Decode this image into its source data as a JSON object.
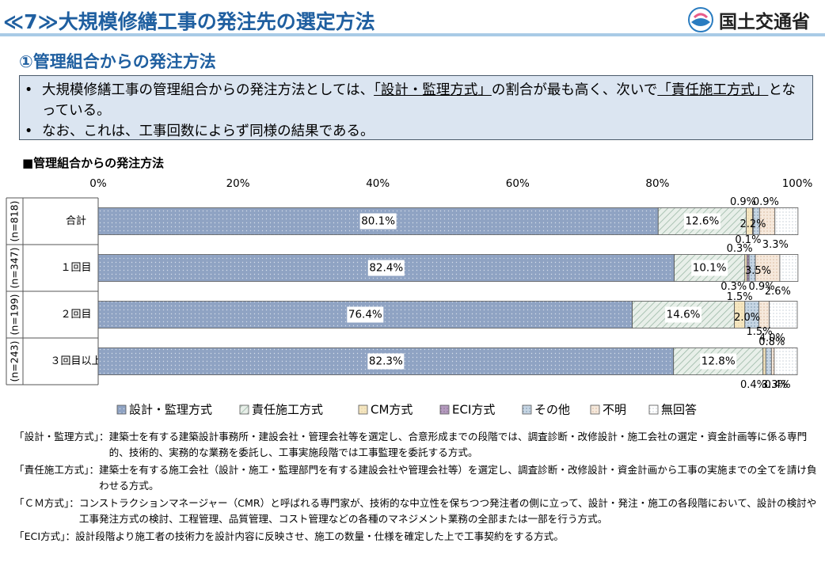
{
  "header": {
    "title": "≪7≫大規模修繕工事の発注先の選定方法",
    "logo_text": "国土交通省",
    "logo_icon": "mlit-logo-icon"
  },
  "subtitle": "①管理組合からの発注方法",
  "summary": {
    "bullet": "•",
    "line1_pre": "大規模修繕工事の管理組合からの発注方法としては、",
    "line1_u1": "「設計・監理方式」",
    "line1_mid": "の割合が最も高く、次いで",
    "line1_u2": "「責任施工方式」",
    "line1_post": "となっている。",
    "line2": "なお、これは、工事回数によらず同様の結果である。"
  },
  "chart_title": "■管理組合からの発注方法",
  "chart_data": {
    "type": "bar",
    "orientation": "horizontal",
    "stacked": true,
    "xlim": [
      0,
      100
    ],
    "x_ticks": [
      "0%",
      "20%",
      "40%",
      "60%",
      "80%",
      "100%"
    ],
    "categories": [
      "合計",
      "１回目",
      "２回目",
      "３回目以上"
    ],
    "n_labels": [
      "(n=818)",
      "(n=347)",
      "(n=199)",
      "(n=243)"
    ],
    "legend_position": "bottom",
    "series": [
      {
        "name": "設計・監理方式",
        "color": "#8fa3c3",
        "values": [
          80.1,
          82.4,
          76.4,
          82.3
        ],
        "labels": [
          "80.1%",
          "82.4%",
          "76.4%",
          "82.3%"
        ]
      },
      {
        "name": "責任施工方式",
        "color": "#d2e3d6",
        "values": [
          12.6,
          10.1,
          14.6,
          12.8
        ],
        "labels": [
          "12.6%",
          "10.1%",
          "14.6%",
          "12.8%"
        ]
      },
      {
        "name": "CM方式",
        "color": "#f5e6c0",
        "values": [
          0.9,
          0.3,
          1.5,
          0.4
        ],
        "labels": [
          "0.9%",
          "0.3%",
          "1.5%",
          "0.4%"
        ]
      },
      {
        "name": "ECI方式",
        "color": "#c9b8cf",
        "values": [
          0.1,
          0.3,
          0.0,
          0.0
        ],
        "labels": [
          "0.1%",
          "0.3%",
          "",
          ""
        ]
      },
      {
        "name": "その他",
        "color": "#b4c8da",
        "values": [
          0.9,
          0.9,
          2.0,
          0.8
        ],
        "labels": [
          "0.9%",
          "0.9%",
          "2.0%",
          "0.8%"
        ]
      },
      {
        "name": "不明",
        "color": "#f3e4d0",
        "values": [
          2.2,
          3.5,
          1.5,
          0.4
        ],
        "labels": [
          "2.2%",
          "3.5%",
          "1.5%",
          "0.4%"
        ]
      },
      {
        "name": "無回答",
        "color": "#ffffff",
        "values": [
          3.3,
          2.6,
          4.0,
          3.3
        ],
        "labels": [
          "3.3%",
          "2.6%",
          "4.0%",
          "3.3%"
        ]
      }
    ]
  },
  "notes": [
    {
      "term": "「設計・監理方式」：",
      "body": "建築士を有する建築設計事務所・建設会社・管理会社等を選定し、合意形成までの段階では、調査診断・改修設計・施工会社の選定・資金計画等に係る専門的、技術的、実務的な業務を委託し、工事実施段階では工事監理を委託する方式。"
    },
    {
      "term": "「責任施工方式」：",
      "body": "建築士を有する施工会社（設計・施工・監理部門を有する建設会社や管理会社等）を選定し、調査診断・改修設計・資金計画から工事の実施までの全てを請け負わせる方式。"
    },
    {
      "term": "「ＣＭ方式」：",
      "body": "コンストラクションマネージャー（CMR）と呼ばれる専門家が、技術的な中立性を保ちつつ発注者の側に立って、設計・発注・施工の各段階において、設計の検討や工事発注方式の検討、工程管理、品質管理、コスト管理などの各種のマネジメント業務の全部または一部を行う方式。"
    },
    {
      "term": "「ECI方式」：",
      "body": "設計段階より施工者の技術力を設計内容に反映させ、施工の数量・仕様を確定した上で工事契約をする方式。"
    }
  ]
}
